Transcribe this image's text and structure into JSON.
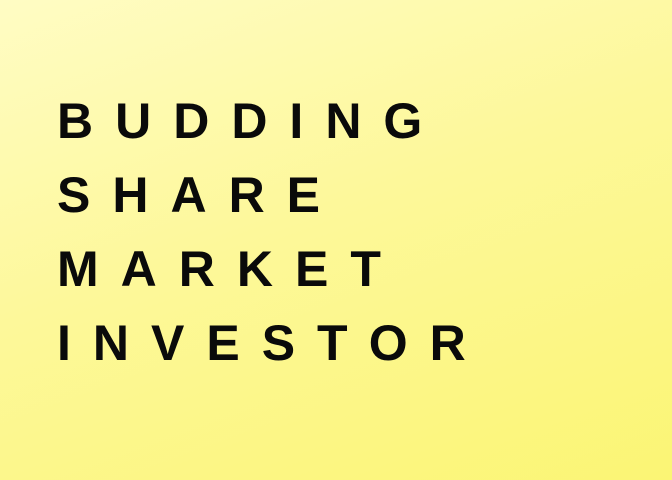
{
  "title": {
    "lines": [
      "BUDDING",
      "SHARE",
      "MARKET",
      "INVESTOR"
    ]
  },
  "colors": {
    "text": "#0a0a0a",
    "background_light": "#fffcc4",
    "background_dark": "#fbf574"
  }
}
